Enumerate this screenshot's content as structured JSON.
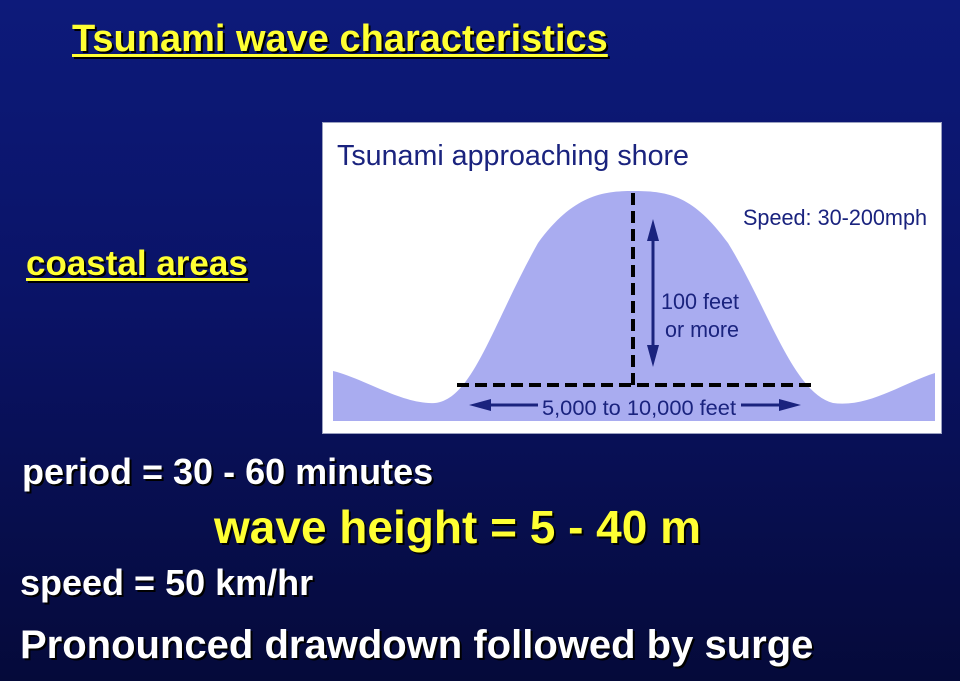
{
  "slide": {
    "title": "Tsunami wave characteristics",
    "subtitle": "coastal areas",
    "lines": {
      "period": "period = 30 - 60 minutes",
      "wave_height": "wave height = 5 - 40 m",
      "speed": "speed = 50 km/hr",
      "drawdown": "Pronounced drawdown followed by surge"
    }
  },
  "figure": {
    "heading": "Tsunami approaching shore",
    "speed_label": "Speed: 30-200mph",
    "height_label_line1": "100 feet",
    "height_label_line2": "or more",
    "width_label": "5,000 to 10,000 feet",
    "colors": {
      "wave": "#a9acf0",
      "text": "#1a237e",
      "dashed": "#000000"
    }
  },
  "colors": {
    "background": "#0a1366",
    "title": "#ffff33",
    "body_text": "#ffffff"
  }
}
